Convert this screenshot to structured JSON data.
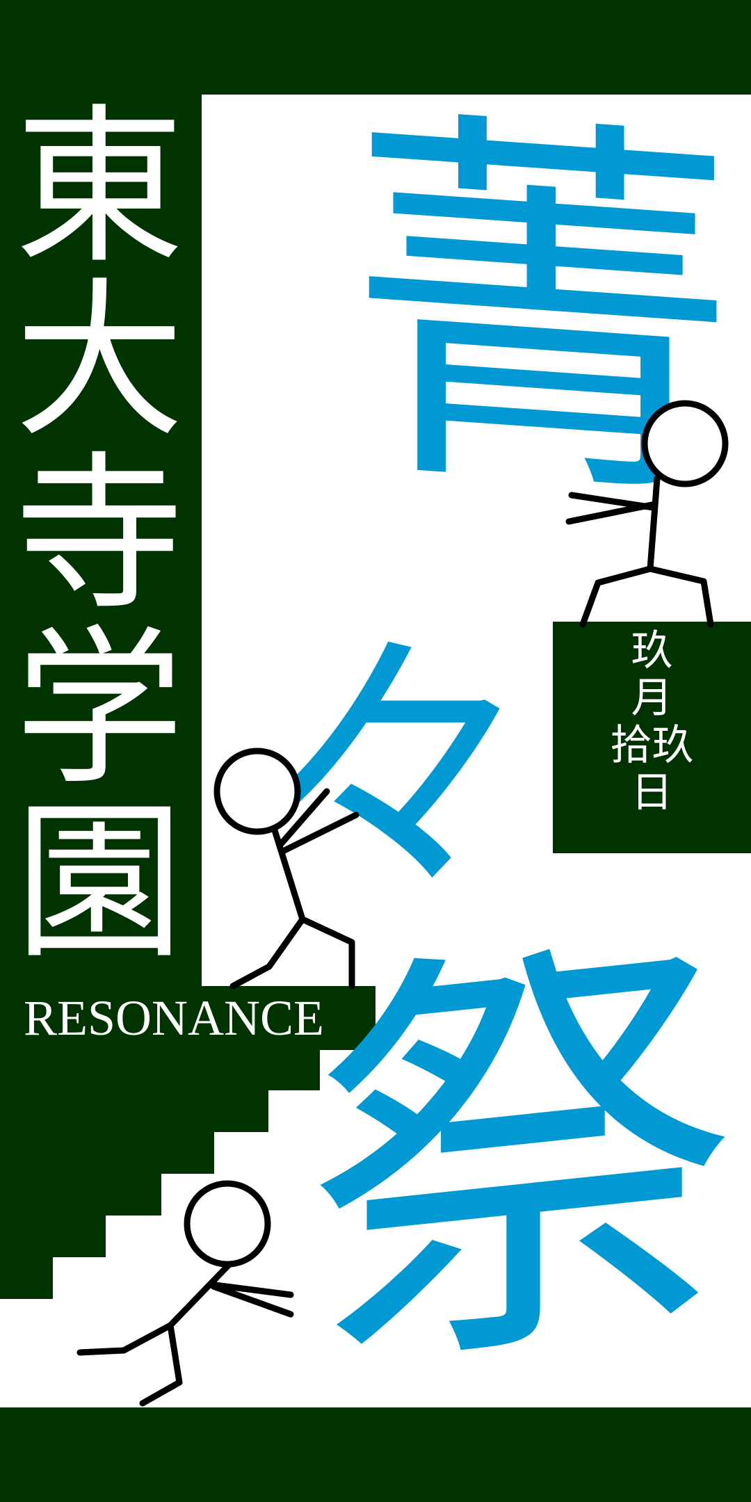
{
  "school": {
    "chars": [
      "東",
      "大",
      "寺",
      "学",
      "園"
    ],
    "subtitle": "RESONANCE"
  },
  "festival": {
    "chars": [
      "菁",
      "々",
      "祭"
    ]
  },
  "date": {
    "chars": [
      "玖",
      "月",
      "拾玖",
      "日"
    ]
  },
  "colors": {
    "dark_green": "#003300",
    "accent_blue": "#0099d4",
    "background": "#ffffff",
    "text_light": "#ffffff",
    "stick_figure": "#000000"
  },
  "icons": [
    "stick-figure-icon",
    "stick-figure-icon",
    "stick-figure-icon"
  ]
}
